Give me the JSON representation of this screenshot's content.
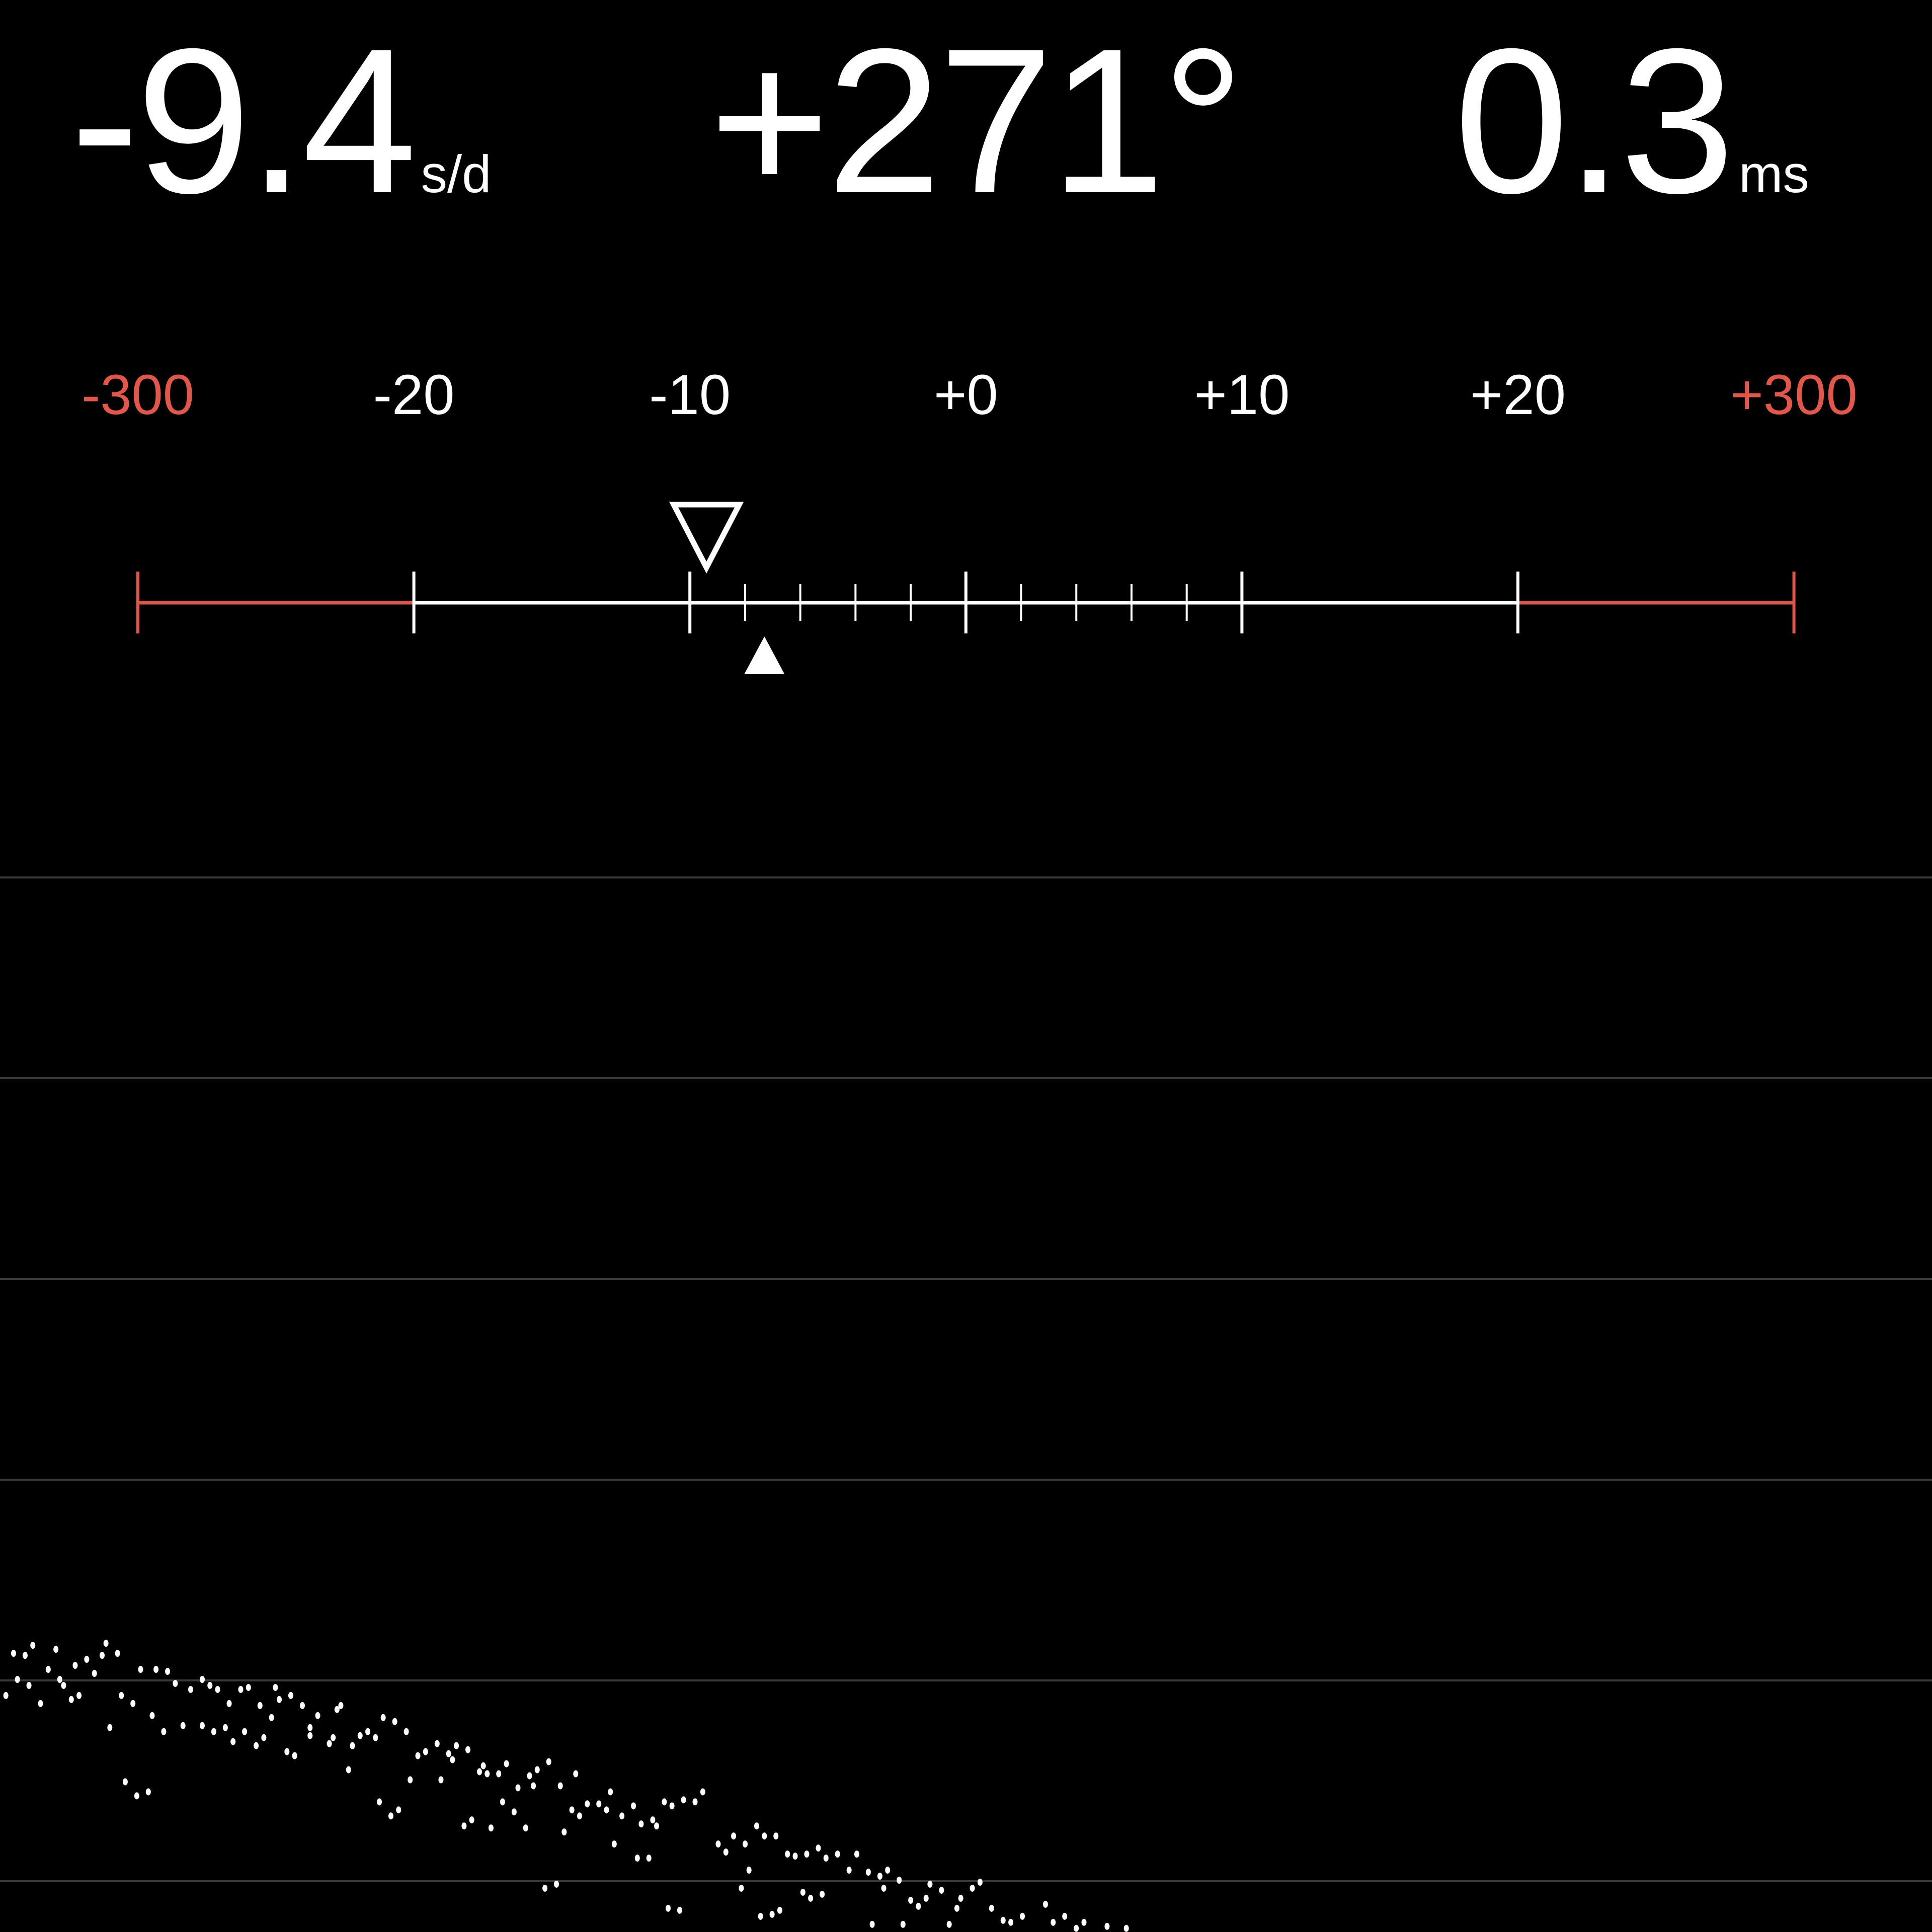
{
  "readouts": {
    "rate": {
      "value": "-9.4",
      "unit": "s/d"
    },
    "beat_error_angle": {
      "value": "+271°"
    },
    "beat_error": {
      "value": "0.3",
      "unit": "ms"
    }
  },
  "scale": {
    "labels": [
      {
        "text": "-300",
        "value": -300,
        "color": "#e0574b"
      },
      {
        "text": "-20",
        "value": -20,
        "color": "#ffffff"
      },
      {
        "text": "-10",
        "value": -10,
        "color": "#ffffff"
      },
      {
        "text": "+0",
        "value": 0,
        "color": "#ffffff"
      },
      {
        "text": "+10",
        "value": 10,
        "color": "#ffffff"
      },
      {
        "text": "+20",
        "value": 20,
        "color": "#ffffff"
      },
      {
        "text": "+300",
        "value": 300,
        "color": "#e0574b"
      }
    ],
    "minor_tick_step": 2,
    "average_marker_value": -9.4,
    "current_marker_value": -7.3,
    "warning_color": "#e0574b"
  },
  "chart_data": {
    "type": "scatter",
    "grid": true,
    "gridline_count": 6,
    "color": "#ffffff",
    "points": [
      [
        3,
        0.13
      ],
      [
        8,
        0.17
      ],
      [
        6,
        0.12
      ],
      [
        14,
        0.15
      ],
      [
        27,
        0.18
      ],
      [
        30,
        0.13
      ],
      [
        26,
        0.12
      ],
      [
        22,
        0.1
      ],
      [
        19,
        0.07
      ],
      [
        12,
        0.05
      ],
      [
        24,
        0.03
      ],
      [
        36,
        0.05
      ],
      [
        40,
        0.05
      ],
      [
        43,
        0.04
      ],
      [
        4,
        0
      ],
      [
        15,
        0
      ],
      [
        7,
        -0.03
      ],
      [
        16,
        -0.03
      ],
      [
        1,
        -0.08
      ],
      [
        10,
        -0.12
      ],
      [
        18,
        -0.1
      ],
      [
        20,
        -0.08
      ],
      [
        31,
        -0.08
      ],
      [
        34,
        -0.12
      ],
      [
        45,
        -0.02
      ],
      [
        49,
        -0.05
      ],
      [
        52,
        0
      ],
      [
        54,
        -0.03
      ],
      [
        56,
        -0.05
      ],
      [
        62,
        -0.05
      ],
      [
        64,
        -0.04
      ],
      [
        71,
        -0.04
      ],
      [
        75,
        -0.08
      ],
      [
        72,
        -0.1
      ],
      [
        59,
        -0.12
      ],
      [
        67,
        -0.13
      ],
      [
        78,
        -0.13
      ],
      [
        88,
        -0.13
      ],
      [
        87,
        -0.15
      ],
      [
        82,
        -0.18
      ],
      [
        70,
        -0.19
      ],
      [
        39,
        -0.18
      ],
      [
        28,
        -0.24
      ],
      [
        42,
        -0.26
      ],
      [
        47,
        -0.23
      ],
      [
        52,
        -0.23
      ],
      [
        55,
        -0.26
      ],
      [
        58,
        -0.24
      ],
      [
        63,
        -0.26
      ],
      [
        60,
        -0.31
      ],
      [
        66,
        -0.33
      ],
      [
        68,
        -0.29
      ],
      [
        74,
        -0.36
      ],
      [
        76,
        -0.38
      ],
      [
        80,
        -0.24
      ],
      [
        80,
        -0.28
      ],
      [
        86,
        -0.29
      ],
      [
        85,
        -0.32
      ],
      [
        91,
        -0.33
      ],
      [
        93,
        -0.28
      ],
      [
        95,
        -0.26
      ],
      [
        97,
        -0.29
      ],
      [
        99,
        -0.19
      ],
      [
        102,
        -0.21
      ],
      [
        105,
        -0.26
      ],
      [
        90,
        -0.45
      ],
      [
        108,
        -0.38
      ],
      [
        110,
        -0.36
      ],
      [
        113,
        -0.32
      ],
      [
        116,
        -0.37
      ],
      [
        117,
        -0.4
      ],
      [
        118,
        -0.33
      ],
      [
        121,
        -0.35
      ],
      [
        106,
        -0.5
      ],
      [
        114,
        -0.5
      ],
      [
        124,
        -0.46
      ],
      [
        125,
        -0.43
      ],
      [
        126,
        -0.47
      ],
      [
        129,
        -0.47
      ],
      [
        131,
        -0.42
      ],
      [
        137,
        -0.48
      ],
      [
        139,
        -0.45
      ],
      [
        142,
        -0.41
      ],
      [
        134,
        -0.54
      ],
      [
        138,
        -0.53
      ],
      [
        145,
        -0.53
      ],
      [
        149,
        -0.47
      ],
      [
        32,
        -0.51
      ],
      [
        35,
        -0.58
      ],
      [
        38,
        -0.56
      ],
      [
        98,
        -0.61
      ],
      [
        101,
        -0.68
      ],
      [
        103,
        -0.65
      ],
      [
        130,
        -0.61
      ],
      [
        133,
        -0.66
      ],
      [
        120,
        -0.73
      ],
      [
        122,
        -0.7
      ],
      [
        127,
        -0.74
      ],
      [
        136,
        -0.74
      ],
      [
        146,
        -0.76
      ],
      [
        148,
        -0.65
      ],
      [
        150,
        -0.68
      ],
      [
        152,
        -0.62
      ],
      [
        155,
        -0.62
      ],
      [
        157,
        -0.65
      ],
      [
        158,
        -0.56
      ],
      [
        161,
        -0.68
      ],
      [
        164,
        -0.63
      ],
      [
        166,
        -0.72
      ],
      [
        169,
        -0.7
      ],
      [
        170,
        -0.73
      ],
      [
        172,
        -0.61
      ],
      [
        174,
        -0.63
      ],
      [
        177,
        -0.6
      ],
      [
        180,
        -0.61
      ],
      [
        182,
        -0.56
      ],
      [
        159,
        -0.82
      ],
      [
        165,
        -0.89
      ],
      [
        168,
        -0.89
      ],
      [
        186,
        -0.82
      ],
      [
        188,
        -0.86
      ],
      [
        190,
        -0.78
      ],
      [
        193,
        -0.82
      ],
      [
        196,
        -0.73
      ],
      [
        198,
        -0.78
      ],
      [
        201,
        -0.78
      ],
      [
        194,
        -0.95
      ],
      [
        204,
        -0.87
      ],
      [
        206,
        -0.88
      ],
      [
        209,
        -0.87
      ],
      [
        212,
        -0.84
      ],
      [
        214,
        -0.89
      ],
      [
        217,
        -0.87
      ],
      [
        222,
        -0.87
      ],
      [
        220,
        -0.95
      ],
      [
        225,
        -0.96
      ],
      [
        228,
        -0.98
      ],
      [
        230,
        -0.95
      ],
      [
        233,
        -1.0
      ],
      [
        141,
        -1.04
      ],
      [
        144,
        -1.02
      ],
      [
        192,
        -1.04
      ],
      [
        229,
        -1.04
      ],
      [
        241,
        -1.02
      ],
      [
        244,
        -1.05
      ],
      [
        252,
        -1.04
      ],
      [
        254,
        -1.01
      ],
      [
        208,
        -1.06
      ],
      [
        210,
        -1.09
      ],
      [
        213,
        -1.07
      ],
      [
        236,
        -1.1
      ],
      [
        238,
        -1.13
      ],
      [
        240,
        -1.09
      ],
      [
        249,
        -1.09
      ],
      [
        173,
        -1.14
      ],
      [
        176,
        -1.15
      ],
      [
        197,
        -1.18
      ],
      [
        200,
        -1.17
      ],
      [
        202,
        -1.15
      ],
      [
        248,
        -1.14
      ],
      [
        257,
        -1.14
      ],
      [
        271,
        -1.12
      ],
      [
        260,
        -1.2
      ],
      [
        262,
        -1.21
      ],
      [
        265,
        -1.18
      ],
      [
        273,
        -1.21
      ],
      [
        276,
        -1.18
      ],
      [
        281,
        -1.21
      ],
      [
        226,
        -1.22
      ],
      [
        234,
        -1.22
      ],
      [
        246,
        -1.22
      ],
      [
        279,
        -1.24
      ],
      [
        287,
        -1.23
      ],
      [
        292,
        -1.24
      ]
    ]
  }
}
